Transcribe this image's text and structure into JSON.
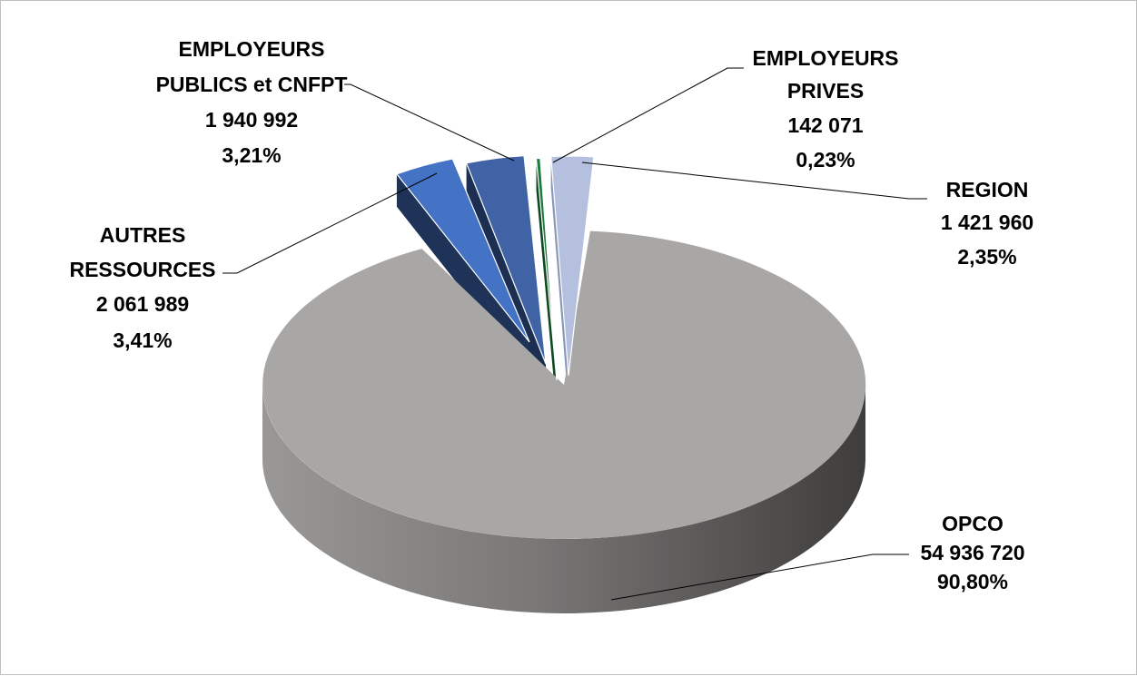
{
  "chart_data": {
    "type": "pie",
    "title": "",
    "style": "3d-exploded",
    "slices": [
      {
        "name": "OPCO",
        "amount_label": "54 936 720",
        "percent_label": "90,80%",
        "value": 54936720,
        "percent": 90.8,
        "color": "#a9a7a6",
        "side_color": "#6e6c6b"
      },
      {
        "name": "REGION",
        "amount_label": "1 421 960",
        "percent_label": "2,35%",
        "value": 1421960,
        "percent": 2.35,
        "color": "#b4c0de",
        "side_color": "#8a97b9"
      },
      {
        "name": "EMPLOYEURS PRIVES",
        "name_lines": [
          "EMPLOYEURS",
          "PRIVES"
        ],
        "amount_label": "142 071",
        "percent_label": "0,23%",
        "value": 142071,
        "percent": 0.23,
        "color": "#1e7a3c",
        "side_color": "#0f4a22"
      },
      {
        "name": "EMPLOYEURS PUBLICS et CNFPT",
        "name_lines": [
          "EMPLOYEURS",
          "PUBLICS et CNFPT"
        ],
        "amount_label": "1 940 992",
        "percent_label": "3,21%",
        "value": 1940992,
        "percent": 3.21,
        "color": "#3f63a5",
        "side_color": "#1c2f53"
      },
      {
        "name": "AUTRES RESSOURCES",
        "name_lines": [
          "AUTRES",
          "RESSOURCES"
        ],
        "amount_label": "2 061 989",
        "percent_label": "3,41%",
        "value": 2061989,
        "percent": 3.41,
        "color": "#4472c4",
        "side_color": "#1f3358"
      }
    ]
  }
}
